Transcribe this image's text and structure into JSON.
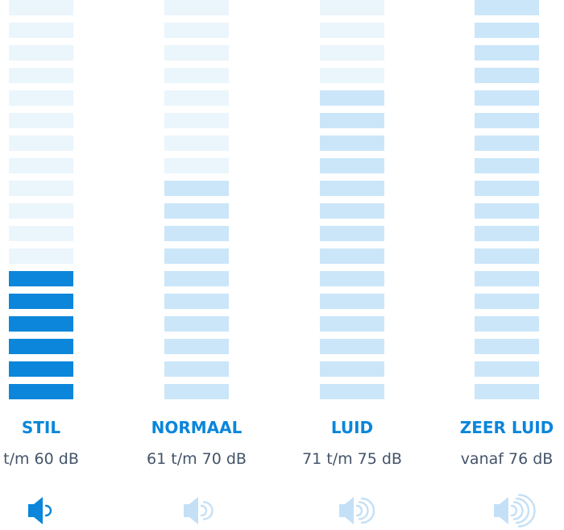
{
  "levels": [
    {
      "title": "STIL",
      "range": "t/m 60 dB"
    },
    {
      "title": "NORMAAL",
      "range": "61 t/m 70 dB"
    },
    {
      "title": "LUID",
      "range": "71 t/m 75 dB"
    },
    {
      "title": "ZEER LUID",
      "range": "vanaf 76 dB"
    }
  ]
}
